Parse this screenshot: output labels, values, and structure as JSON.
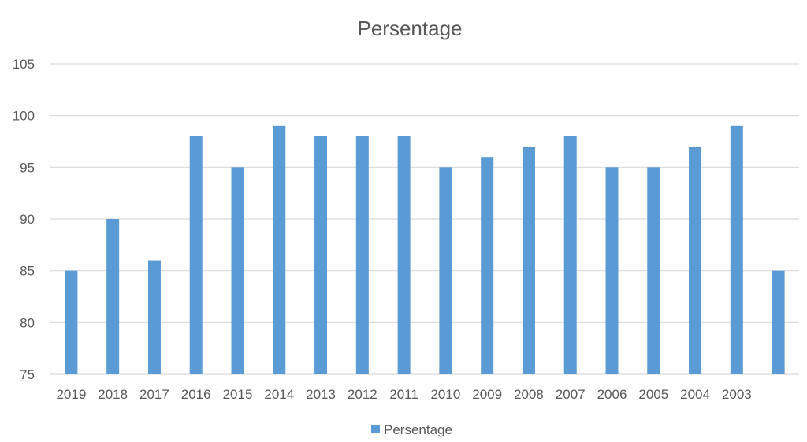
{
  "chart_data": {
    "type": "bar",
    "title": "Persentage",
    "xlabel": "",
    "ylabel": "",
    "categories": [
      "2019",
      "2018",
      "2017",
      "2016",
      "2015",
      "2014",
      "2013",
      "2012",
      "2011",
      "2010",
      "2009",
      "2008",
      "2007",
      "2006",
      "2005",
      "2004",
      "2003",
      ""
    ],
    "series": [
      {
        "name": "Persentage",
        "values": [
          85,
          90,
          86,
          98,
          95,
          99,
          98,
          98,
          98,
          95,
          96,
          97,
          98,
          95,
          95,
          97,
          99,
          85
        ],
        "color": "#5b9bd5"
      }
    ],
    "ylim": [
      75,
      105
    ],
    "yticks": [
      "75",
      "80",
      "85",
      "90",
      "95",
      "100",
      "105"
    ],
    "grid": true,
    "legend_position": "bottom"
  }
}
